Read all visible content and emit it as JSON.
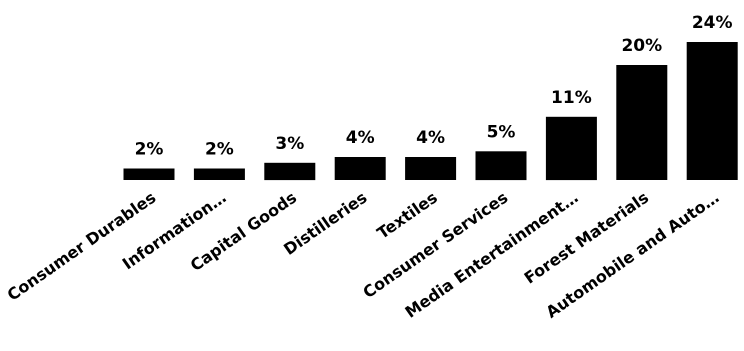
{
  "chart_data": {
    "type": "bar",
    "categories": [
      "Consumer Durables",
      "Information…",
      "Capital Goods",
      "Distilleries",
      "Textiles",
      "Consumer Services",
      "Media Entertainment…",
      "Forest Materials",
      "Automobile and Auto…"
    ],
    "values": [
      2,
      2,
      3,
      4,
      4,
      5,
      11,
      20,
      24
    ],
    "data_labels": [
      "2%",
      "2%",
      "3%",
      "4%",
      "4%",
      "5%",
      "11%",
      "20%",
      "24%"
    ],
    "title": "",
    "xlabel": "",
    "ylabel": "",
    "ylim": [
      0,
      24
    ],
    "grid": false,
    "legend": "none",
    "bar_color": "#000000"
  }
}
